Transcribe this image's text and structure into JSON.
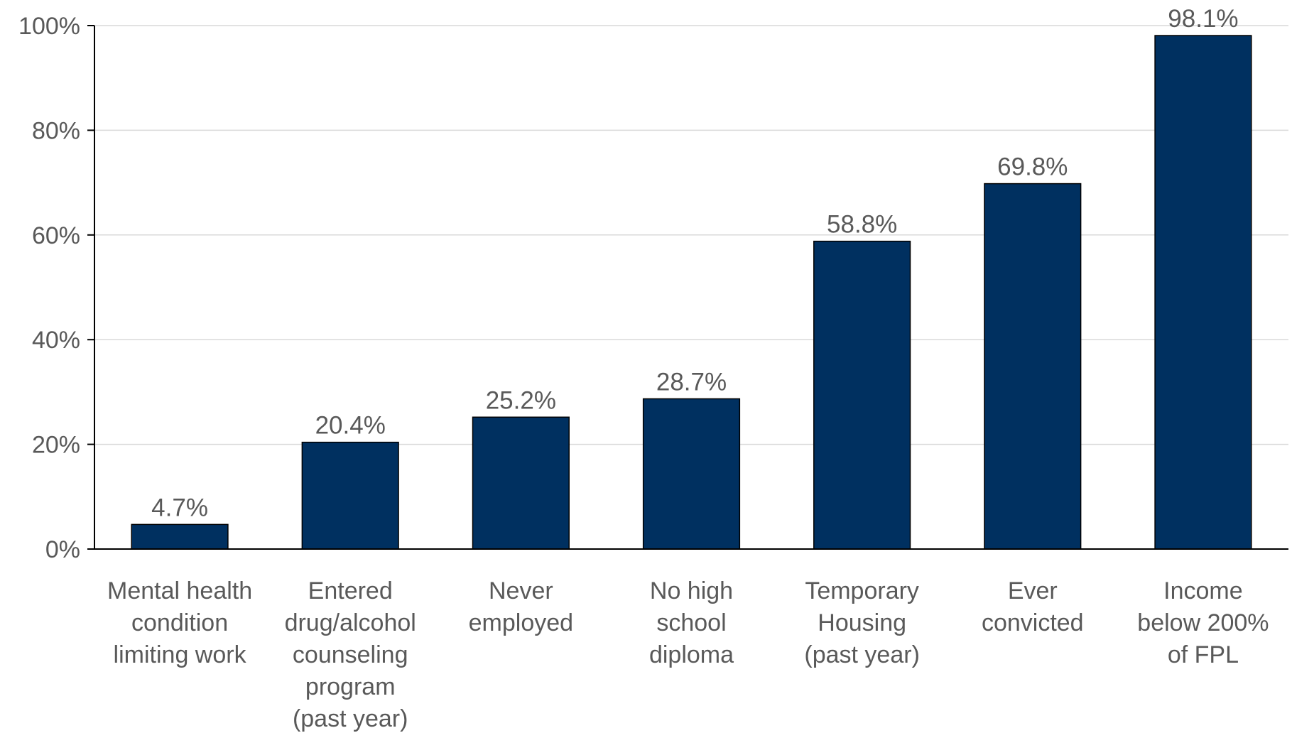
{
  "chart_data": {
    "type": "bar",
    "categories": [
      [
        "Mental health",
        "condition",
        "limiting work"
      ],
      [
        "Entered",
        "drug/alcohol",
        "counseling",
        "program",
        "(past year)"
      ],
      [
        "Never",
        "employed"
      ],
      [
        "No high",
        "school",
        "diploma"
      ],
      [
        "Temporary",
        "Housing",
        "(past year)"
      ],
      [
        "Ever",
        "convicted"
      ],
      [
        "Income",
        "below 200%",
        "of FPL"
      ]
    ],
    "values": [
      4.7,
      20.4,
      25.2,
      28.7,
      58.8,
      69.8,
      98.1
    ],
    "data_labels": [
      "4.7%",
      "20.4%",
      "25.2%",
      "28.7%",
      "58.8%",
      "69.8%",
      "98.1%"
    ],
    "yticks": [
      0,
      20,
      40,
      60,
      80,
      100
    ],
    "ytick_labels": [
      "0%",
      "20%",
      "40%",
      "60%",
      "80%",
      "100%"
    ],
    "ylim": [
      0,
      100
    ],
    "title": "",
    "xlabel": "",
    "ylabel": "",
    "grid": true,
    "legend": "none",
    "colors": {
      "bar": "#003060",
      "grid": "#d9d9d9",
      "axis": "#000000",
      "text": "#595959"
    }
  }
}
